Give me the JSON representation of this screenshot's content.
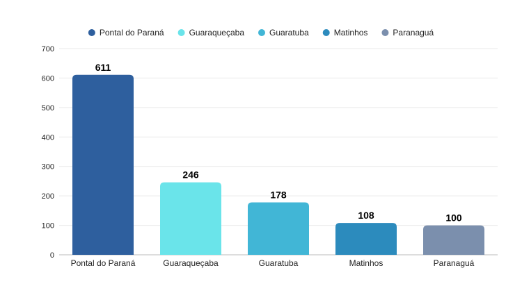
{
  "chart_data": {
    "type": "bar",
    "title": "",
    "xlabel": "",
    "ylabel": "",
    "categories": [
      "Pontal do Paraná",
      "Guaraqueçaba",
      "Guaratuba",
      "Matinhos",
      "Paranaguá"
    ],
    "values": [
      611,
      246,
      178,
      108,
      100
    ],
    "colors": [
      "#2e5f9e",
      "#6ae4ea",
      "#41b6d6",
      "#2c8bbd",
      "#7b8fad"
    ],
    "ylim": [
      0,
      700
    ],
    "yticks": [
      0,
      100,
      200,
      300,
      400,
      500,
      600,
      700
    ],
    "grid": true,
    "legend": {
      "position": "top-center",
      "entries": [
        "Pontal do Paraná",
        "Guaraqueçaba",
        "Guaratuba",
        "Matinhos",
        "Paranaguá"
      ]
    },
    "data_labels": [
      "611",
      "246",
      "178",
      "108",
      "100"
    ]
  }
}
